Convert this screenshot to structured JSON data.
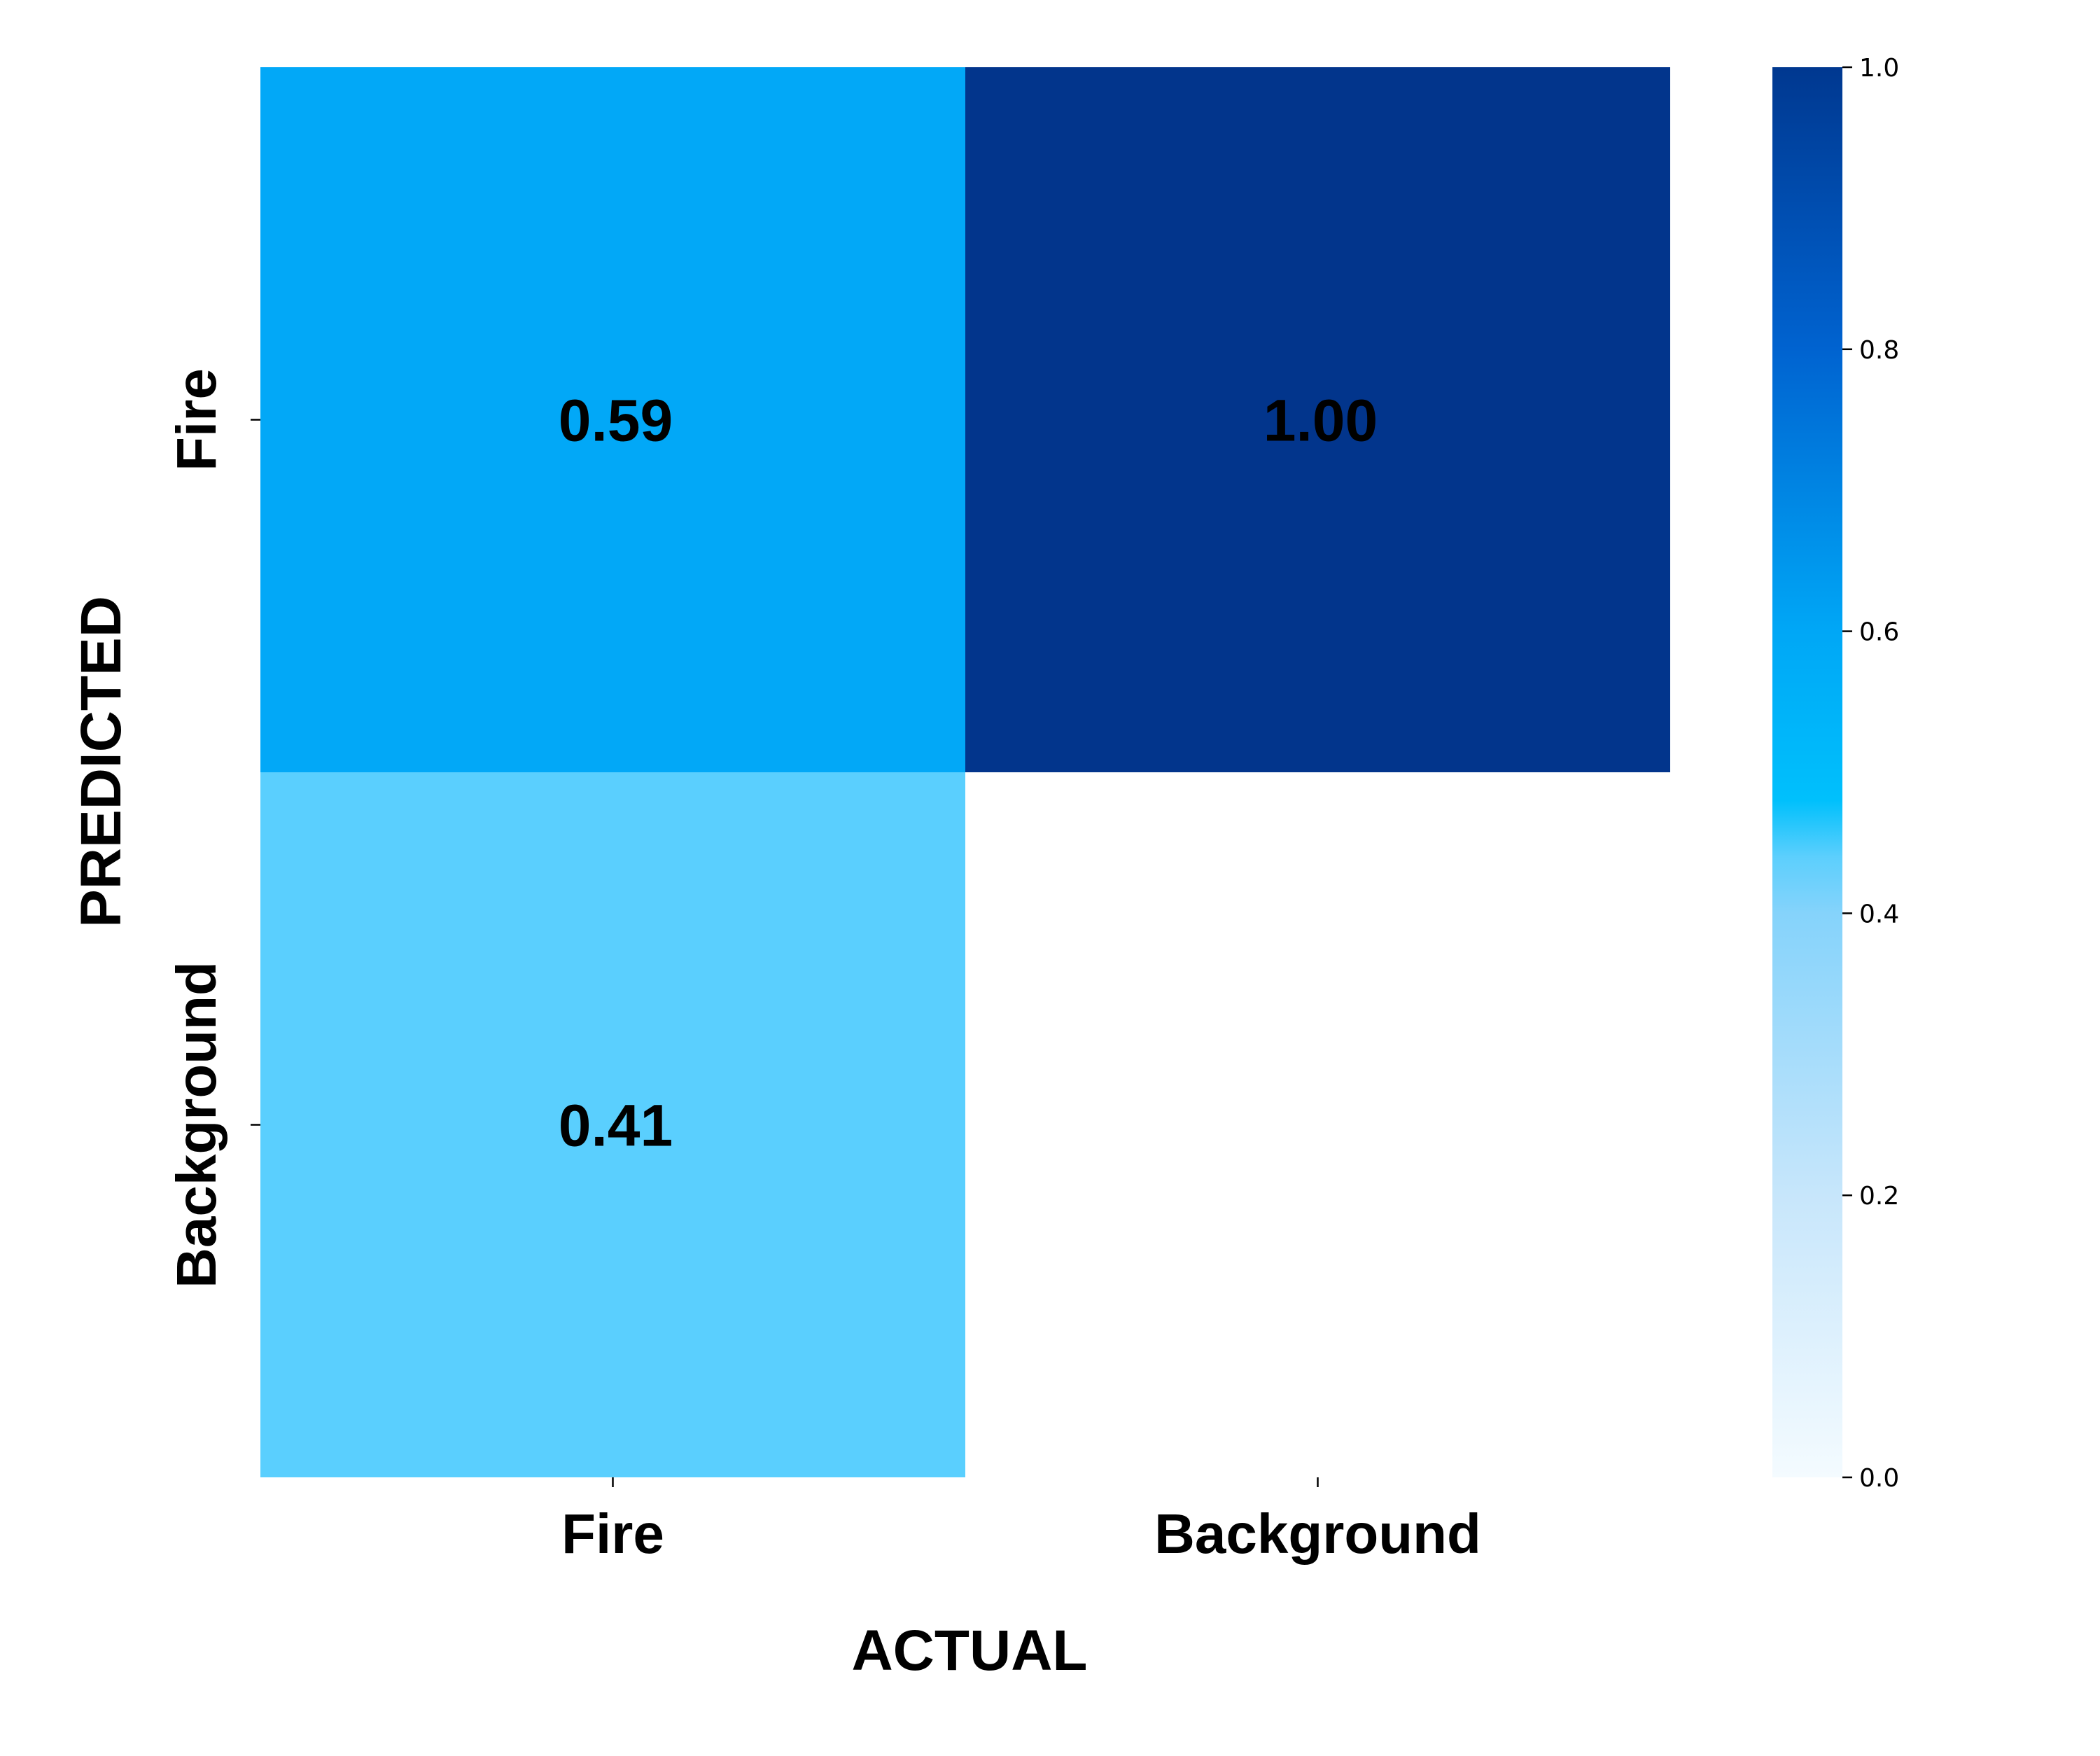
{
  "chart_data": {
    "type": "heatmap",
    "title": "",
    "xlabel": "ACTUAL",
    "ylabel": "PREDICTED",
    "x_categories": [
      "Fire",
      "Background"
    ],
    "y_categories": [
      "Fire",
      "Background"
    ],
    "values": [
      [
        0.59,
        1.0
      ],
      [
        0.41,
        null
      ]
    ],
    "cell_labels": [
      [
        "0.59",
        "1.00"
      ],
      [
        "0.41",
        ""
      ]
    ],
    "colorbar": {
      "range": [
        0.0,
        1.0
      ],
      "ticks": [
        0.0,
        0.2,
        0.4,
        0.6,
        0.8,
        1.0
      ],
      "tick_labels": [
        "0.0",
        "0.2",
        "0.4",
        "0.6",
        "0.8",
        "1.0"
      ]
    },
    "colormap": [
      {
        "v": 0.0,
        "color": "#f4fbff"
      },
      {
        "v": 0.2,
        "color": "#c7e6fb"
      },
      {
        "v": 0.4,
        "color": "#85d3fb"
      },
      {
        "v": 0.44,
        "color": "#5ccffd"
      },
      {
        "v": 0.48,
        "color": "#00c0fc"
      },
      {
        "v": 0.6,
        "color": "#00a7f6"
      },
      {
        "v": 0.8,
        "color": "#0063d0"
      },
      {
        "v": 1.0,
        "color": "#003890"
      }
    ],
    "colors": {
      "cell_0_0": "#02a8f7",
      "cell_0_1": "#02358c",
      "cell_1_0": "#5acffe",
      "cell_1_1": "#ffffff"
    },
    "grid": false,
    "legend": "right colorbar"
  }
}
